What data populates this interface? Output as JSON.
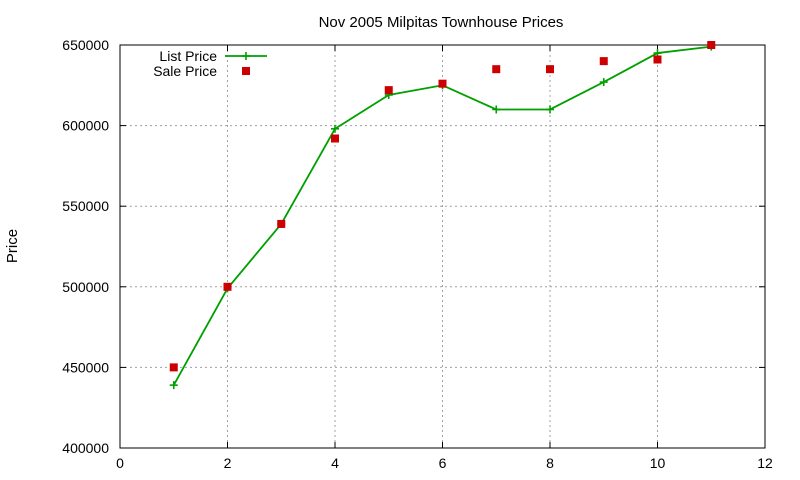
{
  "chart_data": {
    "type": "line",
    "title": "Nov 2005 Milpitas Townhouse Prices",
    "xlabel": "",
    "ylabel": "Price",
    "xlim": [
      0,
      12
    ],
    "ylim": [
      400000,
      650000
    ],
    "x_ticks": [
      "0",
      "2",
      "4",
      "6",
      "8",
      "10",
      "12"
    ],
    "y_ticks": [
      "400000",
      "450000",
      "500000",
      "550000",
      "600000",
      "650000"
    ],
    "grid": true,
    "legend_position": "top-left",
    "series": [
      {
        "name": "List Price",
        "style": "line-with-plus-markers",
        "color": "#00a000",
        "x": [
          1,
          2,
          3,
          4,
          5,
          6,
          7,
          8,
          9,
          10,
          11
        ],
        "y": [
          439000,
          499000,
          539000,
          598000,
          619000,
          625000,
          610000,
          610000,
          627000,
          645000,
          649000
        ]
      },
      {
        "name": "Sale Price",
        "style": "square-points",
        "color": "#cc0000",
        "x": [
          1,
          2,
          3,
          4,
          5,
          6,
          7,
          8,
          9,
          10,
          11
        ],
        "y": [
          450000,
          500000,
          539000,
          592000,
          622000,
          626000,
          635000,
          635000,
          640000,
          641000,
          650000
        ]
      }
    ]
  }
}
